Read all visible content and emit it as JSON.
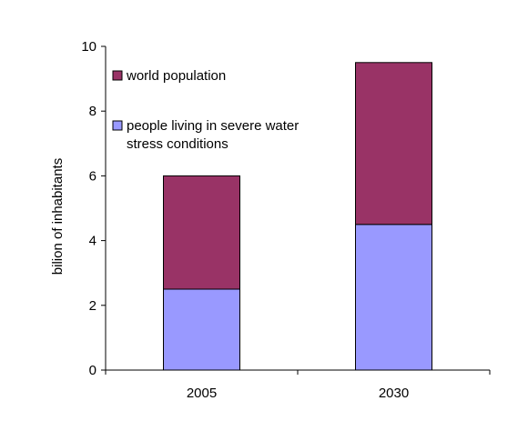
{
  "chart_data": {
    "type": "bar",
    "stacked": true,
    "categories": [
      "2005",
      "2030"
    ],
    "series": [
      {
        "name": "people living in severe water stress conditions",
        "values": [
          2.5,
          4.5
        ],
        "color": "#9999ff"
      },
      {
        "name": "world population",
        "values": [
          3.5,
          5.0
        ],
        "color": "#993366"
      }
    ],
    "totals": [
      6.0,
      9.5
    ],
    "ylabel": "bilion of inhabitants",
    "xlabel": "",
    "title": "",
    "ylim": [
      0,
      10
    ],
    "yticks": [
      "0",
      "2",
      "4",
      "6",
      "8",
      "10"
    ],
    "grid": false,
    "legend": {
      "placement": "top-left",
      "entries": [
        {
          "line1": "world population",
          "line2": "",
          "color": "#993366"
        },
        {
          "line1": "people living in severe water",
          "line2": "stress conditions",
          "color": "#9999ff"
        }
      ]
    }
  }
}
